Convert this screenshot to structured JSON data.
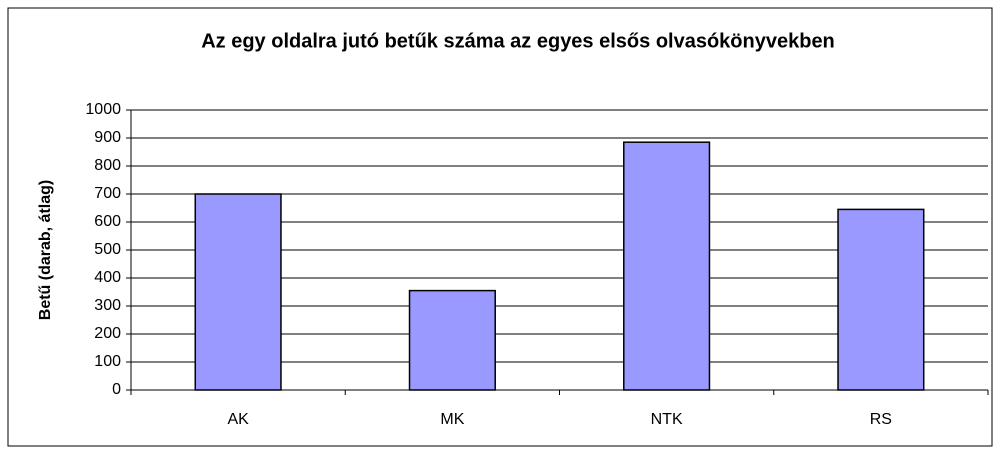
{
  "chart_data": {
    "type": "bar",
    "title": "Az egy oldalra jutó betűk száma az egyes elsős olvasókönyvekben",
    "y_label": "Betű (darab, átlag)",
    "categories": [
      "AK",
      "MK",
      "NTK",
      "RS"
    ],
    "values": [
      700,
      355,
      885,
      645
    ],
    "color": "#9999ff",
    "ylim": [
      0,
      1000
    ],
    "yticks": [
      0,
      100,
      200,
      300,
      400,
      500,
      600,
      700,
      800,
      900,
      1000
    ],
    "grid": true
  }
}
